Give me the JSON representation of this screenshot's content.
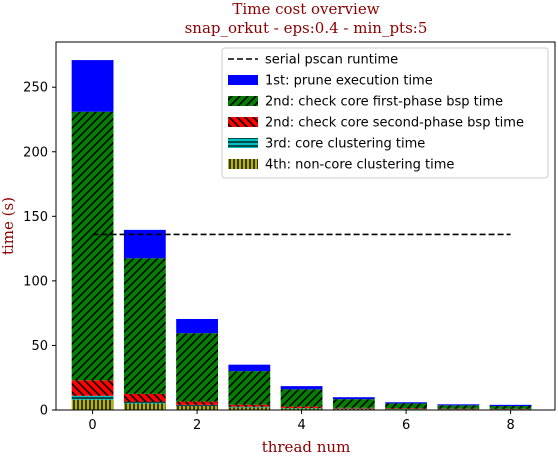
{
  "chart_data": {
    "type": "bar",
    "stacked": true,
    "title": "Time cost overview",
    "subtitle": "snap_orkut - eps:0.4 - min_pts:5",
    "xlabel": "thread num",
    "ylabel": "time (s)",
    "title_color": "#8b0000",
    "xlim": [
      -0.7,
      8.85
    ],
    "ylim": [
      0,
      285
    ],
    "xticks": [
      0,
      2,
      4,
      6,
      8
    ],
    "yticks": [
      0,
      50,
      100,
      150,
      200,
      250
    ],
    "x": [
      0,
      1,
      2,
      3,
      4,
      5,
      6,
      7,
      8
    ],
    "series": [
      {
        "name": "4th: non-core clustering time",
        "color": "#b5b500",
        "hatch": "vertical",
        "values": [
          8,
          5,
          3,
          2,
          1.2,
          0.8,
          0.6,
          0.4,
          0.4
        ]
      },
      {
        "name": "3rd: core clustering time",
        "color": "#00bfbf",
        "hatch": "horizontal",
        "values": [
          3,
          1.5,
          1,
          0.6,
          0.4,
          0.3,
          0.2,
          0.2,
          0.2
        ]
      },
      {
        "name": "2nd: check core second-phase bsp time",
        "color": "#ff0000",
        "hatch": "diagonal-back",
        "values": [
          12,
          6,
          2.5,
          1.5,
          1,
          0.6,
          0.5,
          0.4,
          0.3
        ]
      },
      {
        "name": "2nd: check core first-phase bsp time",
        "color": "#008000",
        "hatch": "diagonal",
        "values": [
          208,
          105,
          53,
          26,
          13.4,
          6.7,
          3.8,
          2.6,
          2.2
        ]
      },
      {
        "name": "1st: prune execution time",
        "color": "#0000ff",
        "hatch": "none",
        "values": [
          40,
          22,
          11,
          5,
          2.5,
          1.5,
          0.9,
          0.8,
          0.9
        ]
      }
    ],
    "reference_line": {
      "name": "serial pscan runtime",
      "value": 136,
      "x_range": [
        0,
        8
      ],
      "color": "#000000",
      "style": "dashed"
    },
    "legend": {
      "placement": "top-right",
      "entries": [
        "serial pscan runtime",
        "1st: prune execution time",
        "2nd: check core first-phase bsp time",
        "2nd: check core second-phase bsp time",
        "3rd: core clustering time",
        "4th: non-core clustering time"
      ]
    },
    "grid": false
  }
}
